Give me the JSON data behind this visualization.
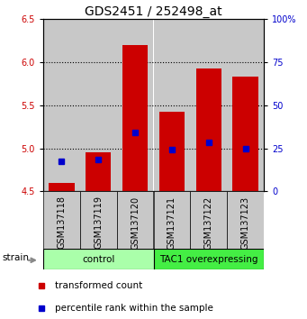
{
  "title": "GDS2451 / 252498_at",
  "samples": [
    "GSM137118",
    "GSM137119",
    "GSM137120",
    "GSM137121",
    "GSM137122",
    "GSM137123"
  ],
  "red_values": [
    4.6,
    4.95,
    6.2,
    5.43,
    5.93,
    5.83
  ],
  "blue_values": [
    4.85,
    4.87,
    5.18,
    4.99,
    5.07,
    5.0
  ],
  "ylim_left": [
    4.5,
    6.5
  ],
  "ylim_right": [
    0,
    100
  ],
  "yticks_left": [
    4.5,
    5.0,
    5.5,
    6.0,
    6.5
  ],
  "yticks_right": [
    0,
    25,
    50,
    75,
    100
  ],
  "ytick_labels_right": [
    "0",
    "25",
    "50",
    "75",
    "100%"
  ],
  "bar_bottom": 4.5,
  "bar_width": 0.7,
  "bar_color": "#cc0000",
  "blue_color": "#0000cc",
  "groups": [
    {
      "label": "control",
      "color": "#aaffaa"
    },
    {
      "label": "TAC1 overexpressing",
      "color": "#44ee44"
    }
  ],
  "legend_red_label": "transformed count",
  "legend_blue_label": "percentile rank within the sample",
  "strain_label": "strain",
  "background_color": "#ffffff",
  "bar_bg_color": "#c8c8c8",
  "title_fontsize": 10,
  "tick_fontsize": 7,
  "label_fontsize": 7.5,
  "legend_fontsize": 7.5
}
